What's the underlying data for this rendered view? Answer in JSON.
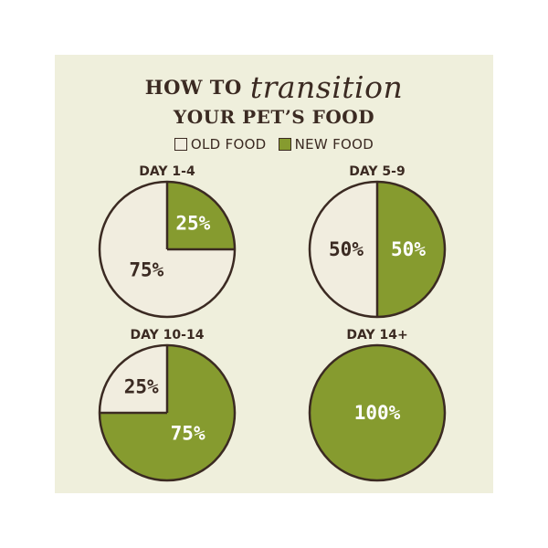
{
  "title": {
    "line1_prefix": "HOW TO",
    "line1_script": "transition",
    "line2": "YOUR PET’S FOOD"
  },
  "legend": [
    {
      "label": "OLD FOOD",
      "color": "#f1eddf"
    },
    {
      "label": "NEW FOOD",
      "color": "#869b2f"
    }
  ],
  "colors": {
    "old_food": "#f1eddf",
    "new_food": "#869b2f",
    "outline": "#3b2a22",
    "panel": "#efefdc"
  },
  "chart_data": [
    {
      "type": "pie",
      "title": "DAY 1-4",
      "categories": [
        "OLD FOOD",
        "NEW FOOD"
      ],
      "values": [
        75,
        25
      ],
      "labels": [
        "75%",
        "25%"
      ]
    },
    {
      "type": "pie",
      "title": "DAY 5-9",
      "categories": [
        "OLD FOOD",
        "NEW FOOD"
      ],
      "values": [
        50,
        50
      ],
      "labels": [
        "50%",
        "50%"
      ]
    },
    {
      "type": "pie",
      "title": "DAY 10-14",
      "categories": [
        "OLD FOOD",
        "NEW FOOD"
      ],
      "values": [
        25,
        75
      ],
      "labels": [
        "25%",
        "75%"
      ]
    },
    {
      "type": "pie",
      "title": "DAY 14+",
      "categories": [
        "OLD FOOD",
        "NEW FOOD"
      ],
      "values": [
        0,
        100
      ],
      "labels": [
        "",
        "100%"
      ]
    }
  ]
}
